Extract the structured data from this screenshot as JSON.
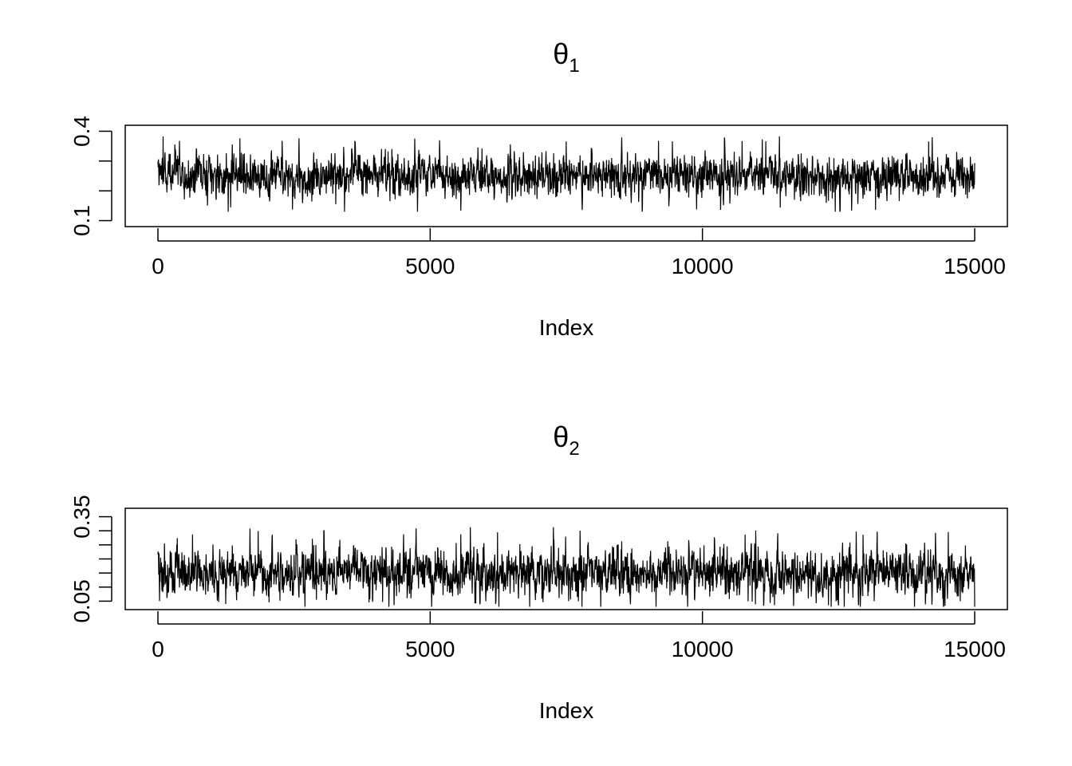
{
  "chart_data": [
    {
      "type": "line",
      "title": "θ",
      "title_subscript": "1",
      "xlabel": "Index",
      "ylabel": "",
      "xlim": [
        0,
        15000
      ],
      "ylim": [
        0.08,
        0.42
      ],
      "x_ticks": [
        0,
        5000,
        10000,
        15000
      ],
      "x_tick_labels": [
        "0",
        "5000",
        "10000",
        "15000"
      ],
      "y_ticks": [
        0.1,
        0.2,
        0.3,
        0.4
      ],
      "y_tick_labels": [
        "0.1",
        "",
        "",
        "0.4"
      ],
      "n_points": 15000,
      "series_summary": {
        "center": 0.25,
        "min": 0.09,
        "max": 0.42
      },
      "grid": false,
      "color": "#000000"
    },
    {
      "type": "line",
      "title": "θ",
      "title_subscript": "2",
      "xlabel": "Index",
      "ylabel": "",
      "xlim": [
        0,
        15000
      ],
      "ylim": [
        0.02,
        0.38
      ],
      "x_ticks": [
        0,
        5000,
        10000,
        15000
      ],
      "x_tick_labels": [
        "0",
        "5000",
        "10000",
        "15000"
      ],
      "y_ticks": [
        0.05,
        0.1,
        0.15,
        0.2,
        0.25,
        0.3,
        0.35
      ],
      "y_tick_labels": [
        "0.05",
        "",
        "",
        "",
        "",
        "",
        "0.35"
      ],
      "n_points": 15000,
      "series_summary": {
        "center": 0.15,
        "min": 0.03,
        "max": 0.37
      },
      "grid": false,
      "color": "#000000"
    }
  ]
}
